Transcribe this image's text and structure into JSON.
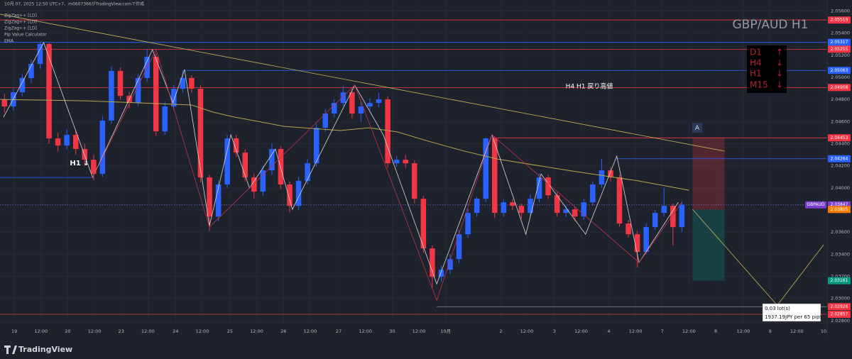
{
  "chart_data": {
    "type": "candlestick",
    "header": "10月 07, 2025 12:50 UTC+7、m0607366がTradingView.comで作成",
    "indicators": [
      "ZigZag++ [LD]",
      "ZigZag++ [LD]",
      "ZigZag++ [LD]",
      "Pip Value Calculator",
      "EMA"
    ],
    "title": "GBP/AUD H1",
    "trend_box": [
      {
        "tf": "D1",
        "dir": "↑"
      },
      {
        "tf": "H4",
        "dir": "↓"
      },
      {
        "tf": "H1",
        "dir": "↓"
      },
      {
        "tf": "M15",
        "dir": "↓"
      }
    ],
    "annotations": [
      "H4 H1 戻り高値",
      "H1 ↓",
      "A"
    ],
    "position_info": [
      "0.03 lot(s)",
      "1937.19JPY per 65 pips"
    ],
    "symbol_label": "GBPAUD",
    "brand": "TradingView",
    "up_color": "#2962ff",
    "down_color": "#f23645",
    "xlim": [
      -0.5,
      92.3
    ],
    "ylim": [
      2.0278,
      2.057
    ],
    "xticks": [
      {
        "value": 1.1,
        "label": "19"
      },
      {
        "value": 4.1,
        "label": "12:00"
      },
      {
        "value": 7.1,
        "label": "20"
      },
      {
        "value": 10.1,
        "label": "12:00"
      },
      {
        "value": 13.1,
        "label": "23"
      },
      {
        "value": 16.1,
        "label": "12:00"
      },
      {
        "value": 19.2,
        "label": "24"
      },
      {
        "value": 22.2,
        "label": "12:00"
      },
      {
        "value": 25.3,
        "label": "25"
      },
      {
        "value": 28.3,
        "label": "12:00"
      },
      {
        "value": 31.3,
        "label": "26"
      },
      {
        "value": 34.3,
        "label": "12:00"
      },
      {
        "value": 37.5,
        "label": "27"
      },
      {
        "value": 40.5,
        "label": "12:00"
      },
      {
        "value": 43.5,
        "label": "30"
      },
      {
        "value": 46.5,
        "label": "12:00"
      },
      {
        "value": 49.5,
        "label": "10月"
      },
      {
        "value": 55.7,
        "label": "2"
      },
      {
        "value": 58.6,
        "label": "12:00"
      },
      {
        "value": 61.7,
        "label": "3"
      },
      {
        "value": 64.7,
        "label": "12:00"
      },
      {
        "value": 67.8,
        "label": "4"
      },
      {
        "value": 70.8,
        "label": "12:00"
      },
      {
        "value": 73.8,
        "label": "7"
      },
      {
        "value": 76.8,
        "label": "12:00"
      },
      {
        "value": 79.8,
        "label": "8"
      },
      {
        "value": 82.9,
        "label": "12:00"
      },
      {
        "value": 85.9,
        "label": "9"
      },
      {
        "value": 88.9,
        "label": "12:00"
      },
      {
        "value": 91.9,
        "label": "10"
      }
    ],
    "yticks": [
      {
        "value": 2.028,
        "label": "2.02800"
      },
      {
        "value": 2.03,
        "label": "2.03000"
      },
      {
        "value": 2.032,
        "label": "2.03200"
      },
      {
        "value": 2.034,
        "label": "2.03400"
      },
      {
        "value": 2.036,
        "label": "2.03600"
      },
      {
        "value": 2.038,
        "label": "2.03800"
      },
      {
        "value": 2.04,
        "label": "2.04000"
      },
      {
        "value": 2.042,
        "label": "2.04200"
      },
      {
        "value": 2.044,
        "label": "2.04400"
      },
      {
        "value": 2.046,
        "label": "2.04600"
      },
      {
        "value": 2.048,
        "label": "2.04800"
      },
      {
        "value": 2.05,
        "label": "2.05000"
      },
      {
        "value": 2.052,
        "label": "2.05200"
      },
      {
        "value": 2.054,
        "label": "2.05400"
      },
      {
        "value": 2.056,
        "label": "2.05600"
      }
    ],
    "x": [
      0,
      1,
      2,
      3,
      4,
      5,
      6,
      7,
      8,
      9,
      10,
      11,
      12,
      13,
      14,
      15,
      16,
      17,
      18,
      19,
      20,
      21,
      22,
      23,
      24,
      25,
      26,
      27,
      28,
      29,
      30,
      31,
      32,
      33,
      34,
      35,
      36,
      37,
      38,
      39,
      40,
      41,
      42,
      43,
      44,
      45,
      46,
      47,
      48,
      49,
      50,
      51,
      52,
      53,
      54,
      55,
      56,
      57,
      58,
      59,
      60,
      61,
      62,
      63,
      64,
      65,
      66,
      67,
      68,
      69,
      70,
      71,
      72,
      73,
      74,
      75,
      76
    ],
    "open": [
      2.048,
      2.04737,
      2.04865,
      2.04994,
      2.05122,
      2.05302,
      2.04448,
      2.04384,
      2.0448,
      2.04352,
      2.04255,
      2.04127,
      2.04609,
      2.05058,
      2.04833,
      2.04769,
      2.04994,
      2.05186,
      2.04512,
      2.04737,
      2.04897,
      2.04994,
      2.04897,
      2.04095,
      2.03742,
      2.04031,
      2.04448,
      2.0432,
      2.04095,
      2.03967,
      2.04159,
      2.04352,
      2.04031,
      2.03838,
      2.04063,
      2.04223,
      2.04544,
      2.04673,
      2.04769,
      2.04865,
      2.04673,
      2.04737,
      2.04769,
      2.04801,
      2.04223,
      2.04255,
      2.04223,
      2.03902,
      2.03453,
      2.03196,
      2.0326,
      2.03357,
      2.03581,
      2.03774,
      2.03902,
      2.04448,
      2.03774,
      2.0387,
      2.03838,
      2.03774,
      2.03902,
      2.04095,
      2.03934,
      2.03774,
      2.03806,
      2.03742,
      2.0387,
      2.04031,
      2.04159,
      2.04095,
      2.03678,
      2.03581,
      2.03421,
      2.03646,
      2.03774,
      2.03838,
      2.03646
    ],
    "high": [
      2.0485,
      2.049,
      2.0503,
      2.0516,
      2.05317,
      2.0531,
      2.045,
      2.0453,
      2.0452,
      2.044,
      2.043,
      2.0465,
      2.051,
      2.0509,
      2.0487,
      2.0503,
      2.05255,
      2.0522,
      2.0478,
      2.0493,
      2.05063,
      2.0502,
      2.0493,
      2.0412,
      2.0407,
      2.0448,
      2.0448,
      2.0435,
      2.0413,
      2.042,
      2.044,
      2.0438,
      2.0406,
      2.041,
      2.0426,
      2.0458,
      2.0471,
      2.048,
      2.0492,
      2.049,
      2.0478,
      2.0481,
      2.0486,
      2.0483,
      2.0429,
      2.043,
      2.0425,
      2.0393,
      2.0348,
      2.033,
      2.034,
      2.0362,
      2.0381,
      2.0392,
      2.04453,
      2.0447,
      2.039,
      2.039,
      2.0386,
      2.0394,
      2.0413,
      2.0412,
      2.0396,
      2.0384,
      2.0383,
      2.039,
      2.0406,
      2.04264,
      2.0419,
      2.0412,
      2.0371,
      2.0361,
      2.0368,
      2.038,
      2.04,
      2.0386,
      2.0388
    ],
    "low": [
      2.0468,
      2.047,
      2.0483,
      2.0495,
      2.0508,
      2.044,
      2.0433,
      2.0435,
      2.043,
      2.042,
      2.0407,
      2.041,
      2.0458,
      2.048,
      2.0472,
      2.0474,
      2.0496,
      2.0447,
      2.0448,
      2.047,
      2.0486,
      2.0486,
      2.0405,
      2.0361,
      2.037,
      2.04,
      2.0428,
      2.0406,
      2.039,
      2.0393,
      2.0412,
      2.0399,
      2.0378,
      2.038,
      2.0403,
      2.0419,
      2.0451,
      2.0464,
      2.0474,
      2.0463,
      2.046,
      2.047,
      2.0473,
      2.0418,
      2.0419,
      2.0418,
      2.0386,
      2.0341,
      2.031,
      2.0315,
      2.0322,
      2.0332,
      2.0355,
      2.0374,
      2.0387,
      2.0373,
      2.0374,
      2.038,
      2.0372,
      2.0374,
      2.0387,
      2.039,
      2.0374,
      2.0374,
      2.037,
      2.0371,
      2.0384,
      2.04,
      2.0406,
      2.0365,
      2.0355,
      2.0328,
      2.034,
      2.0362,
      2.0374,
      2.0348,
      2.036
    ],
    "close": [
      2.04737,
      2.04865,
      2.04994,
      2.05122,
      2.05302,
      2.04448,
      2.04384,
      2.0448,
      2.04352,
      2.04255,
      2.04127,
      2.04609,
      2.05058,
      2.04833,
      2.04769,
      2.04994,
      2.05186,
      2.04512,
      2.04737,
      2.04897,
      2.04994,
      2.04897,
      2.04095,
      2.03742,
      2.04031,
      2.04448,
      2.0432,
      2.04095,
      2.03967,
      2.04159,
      2.04352,
      2.04031,
      2.03838,
      2.04063,
      2.04223,
      2.04544,
      2.04673,
      2.04769,
      2.04865,
      2.04673,
      2.04737,
      2.04769,
      2.04801,
      2.04223,
      2.04255,
      2.04223,
      2.03902,
      2.03453,
      2.03196,
      2.0326,
      2.03357,
      2.03581,
      2.03774,
      2.03902,
      2.04448,
      2.03774,
      2.0387,
      2.03838,
      2.03774,
      2.03902,
      2.04095,
      2.03934,
      2.03774,
      2.03806,
      2.03742,
      2.0387,
      2.04031,
      2.04159,
      2.04095,
      2.03678,
      2.03581,
      2.03421,
      2.03646,
      2.03774,
      2.03838,
      2.03646,
      2.03847
    ],
    "lines": [
      {
        "name": "EMA",
        "color": "#b5a64a",
        "width": 1,
        "x": [
          -0.5,
          9.1,
          15.4,
          21.0,
          23.4,
          25.8,
          31.4,
          37.7,
          40.9,
          44.1,
          47.3,
          51.3,
          55.3,
          63.2,
          71.2,
          76.8
        ],
        "values": [
          2.04801,
          2.04788,
          2.04769,
          2.0475,
          2.04686,
          2.04641,
          2.04557,
          2.04519,
          2.04544,
          2.04506,
          2.04429,
          2.04339,
          2.04262,
          2.04159,
          2.04063,
          2.03979
        ]
      },
      {
        "color": "#d8d8d8",
        "width": 0.8,
        "x": [
          -0.1,
          4.4,
          9.9,
          16.6,
          18.9,
          20.2,
          23.0,
          25.4,
          27.5,
          30.4,
          32.3,
          39.3,
          42.5,
          48.5,
          54.7,
          58.5,
          60.2,
          65.2,
          68.7,
          71.2,
          75.6
        ],
        "values": [
          2.04641,
          2.05315,
          2.04095,
          2.05251,
          2.04769,
          2.05071,
          2.03658,
          2.0448,
          2.03999,
          2.04352,
          2.03806,
          2.0493,
          2.0448,
          2.03132,
          2.0448,
          2.03581,
          2.04127,
          2.03581,
          2.04288,
          2.03325,
          2.0387
        ]
      },
      {
        "color": "#c2334a",
        "width": 0.8,
        "x": [
          9.9,
          17.0,
          23.0,
          39.3,
          48.5,
          54.7,
          71.2,
          76.0
        ],
        "values": [
          2.04095,
          2.05251,
          2.03646,
          2.0493,
          2.02984,
          2.0448,
          2.03325,
          2.0387
        ]
      },
      {
        "color": "#c9b458",
        "width": 0.8,
        "x": [
          -0.5,
          80.8
        ],
        "values": [
          2.05572,
          2.04333
        ]
      },
      {
        "color": "#c9b458",
        "width": 0.8,
        "x": [
          77.2,
          86.7,
          91.9
        ],
        "values": [
          2.03806,
          2.02939,
          2.03485
        ]
      }
    ],
    "levels": [
      {
        "value": 2.05519,
        "color": "#f23645",
        "x": [
          -0.5,
          92.3
        ]
      },
      {
        "value": 2.05317,
        "color": "#2962ff",
        "x": [
          -0.5,
          92.3
        ]
      },
      {
        "value": 2.05255,
        "color": "#f23645",
        "x": [
          -0.5,
          92.3
        ]
      },
      {
        "value": 2.05063,
        "color": "#2962ff",
        "x": [
          20.2,
          92.3
        ]
      },
      {
        "value": 2.04908,
        "color": "#f23645",
        "x": [
          -0.5,
          92.3
        ]
      },
      {
        "value": 2.04453,
        "color": "#f23645",
        "x": [
          54.7,
          92.3
        ]
      },
      {
        "value": 2.04264,
        "color": "#2962ff",
        "x": [
          68.7,
          92.3
        ]
      },
      {
        "value": 2.04095,
        "color": "#2962ff",
        "x": [
          -0.5,
          9.9
        ]
      },
      {
        "value": 2.02926,
        "color": "#8a8f9c",
        "x": [
          48.5,
          92.3
        ]
      },
      {
        "value": 2.02857,
        "color": "#f23645",
        "x": [
          -0.5,
          92.3
        ]
      }
    ],
    "last_price": 2.03847,
    "price_labels": [
      {
        "value": 2.05519,
        "color": "#f23645"
      },
      {
        "value": 2.05317,
        "color": "#2962ff"
      },
      {
        "value": 2.05255,
        "color": "#f23645"
      },
      {
        "value": 2.05063,
        "color": "#2962ff"
      },
      {
        "value": 2.04908,
        "color": "#f23645"
      },
      {
        "value": 2.04453,
        "color": "#f23645"
      },
      {
        "value": 2.04264,
        "color": "#2962ff"
      },
      {
        "value": 2.03847,
        "color": "#7b3fd0"
      },
      {
        "value": 2.03805,
        "color": "#f57c00"
      },
      {
        "value": 2.03161,
        "color": "#089981"
      },
      {
        "value": 2.02926,
        "color": "#f23645"
      },
      {
        "value": 2.02857,
        "color": "#f23645"
      }
    ],
    "position": {
      "x": [
        77.2,
        80.8
      ],
      "stop": 2.04453,
      "entry": 2.03805,
      "target": 2.03161
    }
  }
}
